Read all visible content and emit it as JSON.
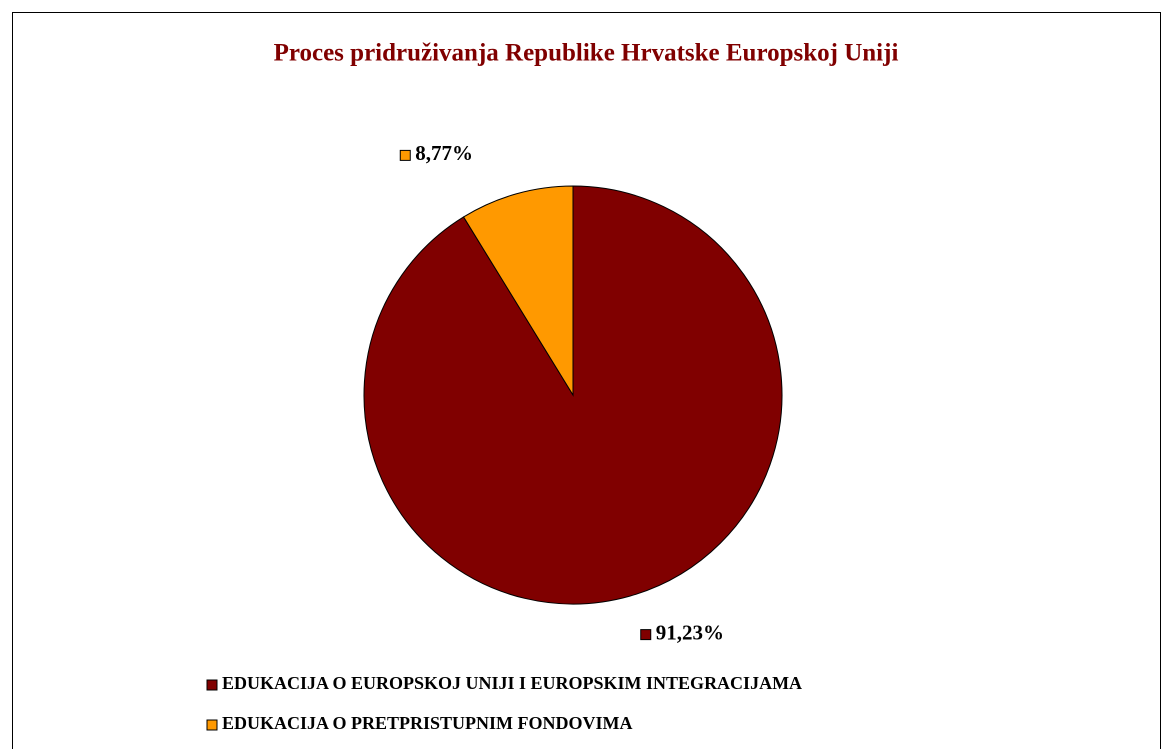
{
  "chart_data": {
    "type": "pie",
    "title": "Proces pridruživanja Republike Hrvatske Europskoj Uniji",
    "categories": [
      "EDUKACIJA O EUROPSKOJ UNIJI I EUROPSKIM INTEGRACIJAMA",
      "EDUKACIJA O PRETPRISTUPNIM FONDOVIMA"
    ],
    "values": [
      91.23,
      8.77
    ],
    "value_labels": [
      "91,23%",
      "8,77%"
    ],
    "colors": [
      "#800000",
      "#ff9900"
    ],
    "legend": "bottom"
  }
}
